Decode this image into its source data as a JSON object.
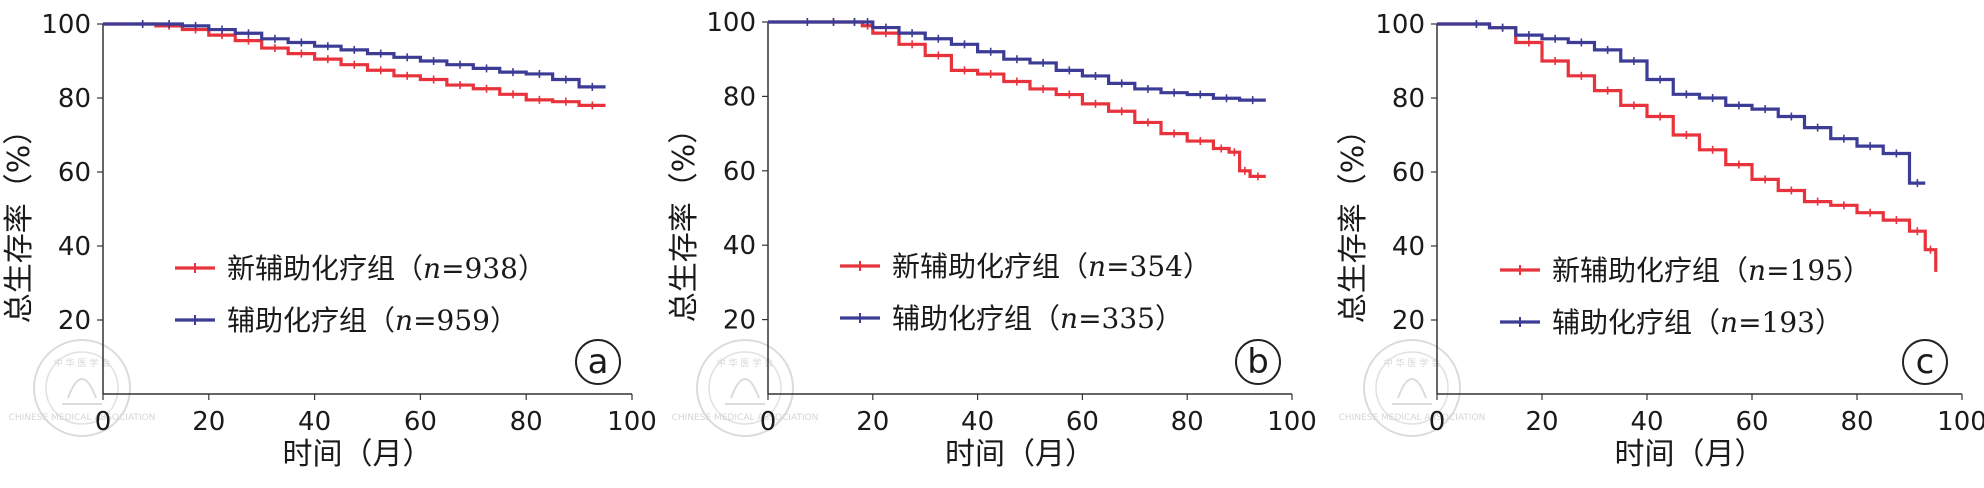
{
  "chart_data": [
    {
      "type": "line",
      "panel_label": "a",
      "xlabel": "时间（月）",
      "ylabel": "总生存率（%）",
      "xlim": [
        0,
        100
      ],
      "ylim": [
        0,
        100
      ],
      "xticks": [
        "0",
        "20",
        "40",
        "60",
        "80",
        "100"
      ],
      "yticks": [
        "20",
        "40",
        "60",
        "80",
        "100"
      ],
      "legend_position": "center",
      "series": [
        {
          "name": "新辅助化疗组（n=938）",
          "name_prefix": "新辅助化疗组（",
          "n_label": "n",
          "n_value": "=938",
          "name_suffix": "）",
          "color": "#e8323c",
          "x": [
            0,
            5,
            10,
            15,
            20,
            25,
            30,
            35,
            40,
            45,
            50,
            55,
            60,
            65,
            70,
            75,
            80,
            85,
            90,
            95
          ],
          "y": [
            100,
            100,
            99.5,
            98.5,
            97,
            95.5,
            93.5,
            92,
            90.5,
            89,
            87.5,
            86,
            85,
            83.5,
            82.5,
            81,
            79.5,
            79,
            78,
            78
          ]
        },
        {
          "name": "辅助化疗组（n=959）",
          "name_prefix": "辅助化疗组（",
          "n_label": "n",
          "n_value": "=959",
          "name_suffix": "）",
          "color": "#3c3c96",
          "x": [
            0,
            5,
            10,
            15,
            20,
            25,
            30,
            35,
            40,
            45,
            50,
            55,
            60,
            65,
            70,
            75,
            80,
            85,
            90,
            95
          ],
          "y": [
            100,
            100,
            100,
            99.5,
            98.5,
            97.5,
            96,
            95,
            94,
            93,
            92,
            91,
            90,
            89,
            88,
            87,
            86.5,
            85,
            83,
            83
          ]
        }
      ]
    },
    {
      "type": "line",
      "panel_label": "b",
      "xlabel": "时间（月）",
      "ylabel": "总生存率（%）",
      "xlim": [
        0,
        100
      ],
      "ylim": [
        0,
        100
      ],
      "xticks": [
        "0",
        "20",
        "40",
        "60",
        "80",
        "100"
      ],
      "yticks": [
        "20",
        "40",
        "60",
        "80",
        "100"
      ],
      "legend_position": "center",
      "series": [
        {
          "name": "新辅助化疗组（n=354）",
          "name_prefix": "新辅助化疗组（",
          "n_label": "n",
          "n_value": "=354",
          "name_suffix": "）",
          "color": "#e8323c",
          "x": [
            0,
            5,
            10,
            15,
            18,
            20,
            25,
            30,
            35,
            40,
            45,
            50,
            55,
            60,
            65,
            70,
            75,
            80,
            85,
            88,
            90,
            92,
            95
          ],
          "y": [
            100,
            100,
            100,
            100,
            99,
            97,
            94,
            91,
            87,
            86,
            84,
            82,
            80.5,
            78,
            76,
            73,
            70,
            68,
            66,
            65,
            60,
            58.5,
            58.5
          ]
        },
        {
          "name": "辅助化疗组（n=335）",
          "name_prefix": "辅助化疗组（",
          "n_label": "n",
          "n_value": "=335",
          "name_suffix": "）",
          "color": "#3c3c96",
          "x": [
            0,
            5,
            10,
            15,
            18,
            20,
            25,
            30,
            35,
            40,
            45,
            50,
            55,
            60,
            65,
            70,
            75,
            80,
            85,
            90,
            95
          ],
          "y": [
            100,
            100,
            100,
            100,
            100,
            98.5,
            97,
            95.5,
            94,
            92,
            90,
            89,
            87,
            85.5,
            83.5,
            82,
            81,
            80.5,
            79.5,
            79,
            79
          ]
        }
      ]
    },
    {
      "type": "line",
      "panel_label": "c",
      "xlabel": "时间（月）",
      "ylabel": "总生存率（%）",
      "xlim": [
        0,
        100
      ],
      "ylim": [
        0,
        100
      ],
      "xticks": [
        "0",
        "20",
        "40",
        "60",
        "80",
        "100"
      ],
      "yticks": [
        "20",
        "40",
        "60",
        "80",
        "100"
      ],
      "legend_position": "center",
      "series": [
        {
          "name": "新辅助化疗组（n=195）",
          "name_prefix": "新辅助化疗组（",
          "n_label": "n",
          "n_value": "=195",
          "name_suffix": "）",
          "color": "#e8323c",
          "x": [
            0,
            5,
            10,
            15,
            20,
            25,
            30,
            35,
            40,
            45,
            50,
            55,
            60,
            65,
            70,
            75,
            80,
            85,
            90,
            93,
            95
          ],
          "y": [
            100,
            100,
            99,
            95,
            90,
            86,
            82,
            78,
            75,
            70,
            66,
            62,
            58,
            55,
            52,
            51,
            49,
            47,
            44,
            39,
            33
          ]
        },
        {
          "name": "辅助化疗组（n=193）",
          "name_prefix": "辅助化疗组（",
          "n_label": "n",
          "n_value": "=193",
          "name_suffix": "）",
          "color": "#3c3c96",
          "x": [
            0,
            5,
            10,
            15,
            20,
            25,
            30,
            35,
            40,
            45,
            50,
            55,
            60,
            65,
            70,
            75,
            80,
            85,
            90,
            93
          ],
          "y": [
            100,
            100,
            99,
            97,
            96,
            95,
            93,
            90,
            85,
            81,
            80,
            78,
            77,
            75,
            72,
            69,
            67,
            65,
            57,
            57
          ]
        }
      ]
    }
  ],
  "watermark": {
    "top_text": "中 华 医 学 会",
    "bottom_text": "CHINESE MEDICAL ASSOCIATION"
  }
}
